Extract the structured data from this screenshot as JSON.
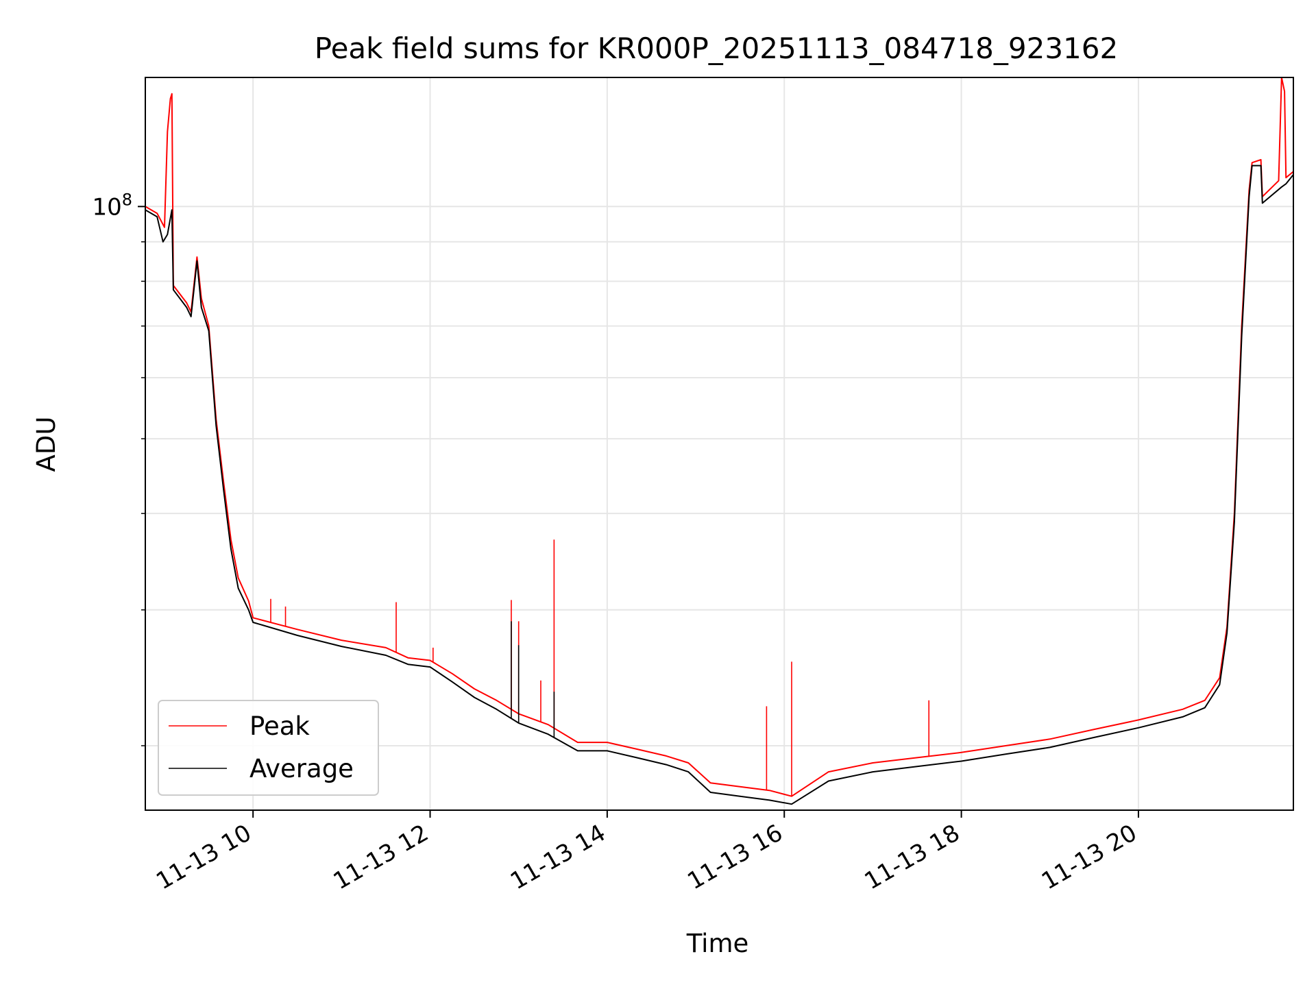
{
  "chart_data": {
    "type": "line",
    "title": "Peak field sums for KR000P_20251113_084718_923162",
    "xlabel": "Time",
    "ylabel": "ADU",
    "x_scale": "time",
    "y_scale": "log",
    "xlim": [
      "2025-11-13 08:47",
      "2025-11-13 21:45"
    ],
    "ylim": [
      16500000,
      147000000
    ],
    "x_ticks": [
      "2025-11-13 10:00",
      "2025-11-13 12:00",
      "2025-11-13 14:00",
      "2025-11-13 16:00",
      "2025-11-13 18:00",
      "2025-11-13 20:00"
    ],
    "x_tick_labels": [
      "11-13 10",
      "11-13 12",
      "11-13 14",
      "11-13 16",
      "11-13 18",
      "11-13 20"
    ],
    "y_major_ticks": [
      100000000
    ],
    "y_major_tick_labels": [
      "10",
      "8"
    ],
    "y_minor_ticks": [
      20000000,
      30000000,
      40000000,
      50000000,
      60000000,
      70000000,
      80000000,
      90000000
    ],
    "grid": true,
    "legend_position": "lower-left",
    "colors": {
      "peak": "#ff0000",
      "average": "#000000",
      "grid": "#e6e6e6"
    },
    "series": [
      {
        "name": "Peak",
        "color": "#ff0000",
        "points": [
          [
            "2025-11-13 08:47",
            100000000
          ],
          [
            "2025-11-13 08:55",
            98000000
          ],
          [
            "2025-11-13 09:00",
            94000000
          ],
          [
            "2025-11-13 09:02",
            125000000
          ],
          [
            "2025-11-13 09:04",
            138000000
          ],
          [
            "2025-11-13 09:05",
            140000000
          ],
          [
            "2025-11-13 09:06",
            79000000
          ],
          [
            "2025-11-13 09:15",
            75000000
          ],
          [
            "2025-11-13 09:18",
            73000000
          ],
          [
            "2025-11-13 09:22",
            86000000
          ],
          [
            "2025-11-13 09:25",
            76000000
          ],
          [
            "2025-11-13 09:30",
            70000000
          ],
          [
            "2025-11-13 09:35",
            53000000
          ],
          [
            "2025-11-13 09:40",
            44000000
          ],
          [
            "2025-11-13 09:45",
            37000000
          ],
          [
            "2025-11-13 09:50",
            33000000
          ],
          [
            "2025-11-13 09:57",
            30800000
          ],
          [
            "2025-11-13 10:00",
            29300000
          ],
          [
            "2025-11-13 10:30",
            28300000
          ],
          [
            "2025-11-13 11:00",
            27400000
          ],
          [
            "2025-11-13 11:30",
            26800000
          ],
          [
            "2025-11-13 11:45",
            26000000
          ],
          [
            "2025-11-13 12:00",
            25800000
          ],
          [
            "2025-11-13 12:15",
            24800000
          ],
          [
            "2025-11-13 12:30",
            23700000
          ],
          [
            "2025-11-13 12:45",
            22900000
          ],
          [
            "2025-11-13 13:00",
            22000000
          ],
          [
            "2025-11-13 13:20",
            21300000
          ],
          [
            "2025-11-13 13:40",
            20200000
          ],
          [
            "2025-11-13 14:00",
            20200000
          ],
          [
            "2025-11-13 14:20",
            19800000
          ],
          [
            "2025-11-13 14:40",
            19400000
          ],
          [
            "2025-11-13 14:55",
            19000000
          ],
          [
            "2025-11-13 15:10",
            17900000
          ],
          [
            "2025-11-13 15:30",
            17700000
          ],
          [
            "2025-11-13 15:50",
            17500000
          ],
          [
            "2025-11-13 16:05",
            17200000
          ],
          [
            "2025-11-13 16:30",
            18500000
          ],
          [
            "2025-11-13 17:00",
            19000000
          ],
          [
            "2025-11-13 17:30",
            19300000
          ],
          [
            "2025-11-13 18:00",
            19600000
          ],
          [
            "2025-11-13 18:30",
            20000000
          ],
          [
            "2025-11-13 19:00",
            20400000
          ],
          [
            "2025-11-13 19:30",
            21000000
          ],
          [
            "2025-11-13 20:00",
            21600000
          ],
          [
            "2025-11-13 20:30",
            22300000
          ],
          [
            "2025-11-13 20:45",
            22900000
          ],
          [
            "2025-11-13 20:55",
            24500000
          ],
          [
            "2025-11-13 21:00",
            28500000
          ],
          [
            "2025-11-13 21:05",
            40000000
          ],
          [
            "2025-11-13 21:10",
            70000000
          ],
          [
            "2025-11-13 21:15",
            105000000
          ],
          [
            "2025-11-13 21:17",
            114000000
          ],
          [
            "2025-11-13 21:23",
            115000000
          ],
          [
            "2025-11-13 21:24",
            103000000
          ],
          [
            "2025-11-13 21:35",
            108000000
          ],
          [
            "2025-11-13 21:37",
            147000000
          ],
          [
            "2025-11-13 21:39",
            141000000
          ],
          [
            "2025-11-13 21:40",
            109000000
          ],
          [
            "2025-11-13 21:45",
            111000000
          ]
        ],
        "spikes": [
          [
            "2025-11-13 10:12",
            31000000
          ],
          [
            "2025-11-13 10:22",
            30300000
          ],
          [
            "2025-11-13 11:37",
            30700000
          ],
          [
            "2025-11-13 12:02",
            26800000
          ],
          [
            "2025-11-13 12:55",
            30900000
          ],
          [
            "2025-11-13 13:00",
            29000000
          ],
          [
            "2025-11-13 13:15",
            24300000
          ],
          [
            "2025-11-13 13:24",
            37000000
          ],
          [
            "2025-11-13 15:48",
            22500000
          ],
          [
            "2025-11-13 16:05",
            25700000
          ],
          [
            "2025-11-13 17:38",
            22900000
          ]
        ]
      },
      {
        "name": "Average",
        "color": "#000000",
        "points": [
          [
            "2025-11-13 08:47",
            99000000
          ],
          [
            "2025-11-13 08:55",
            97000000
          ],
          [
            "2025-11-13 08:59",
            90000000
          ],
          [
            "2025-11-13 09:02",
            92000000
          ],
          [
            "2025-11-13 09:05",
            99000000
          ],
          [
            "2025-11-13 09:06",
            78000000
          ],
          [
            "2025-11-13 09:15",
            74000000
          ],
          [
            "2025-11-13 09:18",
            72000000
          ],
          [
            "2025-11-13 09:22",
            85000000
          ],
          [
            "2025-11-13 09:25",
            74000000
          ],
          [
            "2025-11-13 09:30",
            69000000
          ],
          [
            "2025-11-13 09:35",
            52000000
          ],
          [
            "2025-11-13 09:40",
            43000000
          ],
          [
            "2025-11-13 09:45",
            36000000
          ],
          [
            "2025-11-13 09:50",
            32000000
          ],
          [
            "2025-11-13 09:57",
            30000000
          ],
          [
            "2025-11-13 10:00",
            28900000
          ],
          [
            "2025-11-13 10:30",
            27800000
          ],
          [
            "2025-11-13 11:00",
            26900000
          ],
          [
            "2025-11-13 11:30",
            26200000
          ],
          [
            "2025-11-13 11:45",
            25500000
          ],
          [
            "2025-11-13 12:00",
            25300000
          ],
          [
            "2025-11-13 12:15",
            24200000
          ],
          [
            "2025-11-13 12:30",
            23100000
          ],
          [
            "2025-11-13 12:45",
            22300000
          ],
          [
            "2025-11-13 13:00",
            21400000
          ],
          [
            "2025-11-13 13:20",
            20700000
          ],
          [
            "2025-11-13 13:40",
            19700000
          ],
          [
            "2025-11-13 14:00",
            19700000
          ],
          [
            "2025-11-13 14:20",
            19300000
          ],
          [
            "2025-11-13 14:40",
            18900000
          ],
          [
            "2025-11-13 14:55",
            18500000
          ],
          [
            "2025-11-13 15:10",
            17400000
          ],
          [
            "2025-11-13 15:30",
            17200000
          ],
          [
            "2025-11-13 15:50",
            17000000
          ],
          [
            "2025-11-13 16:05",
            16800000
          ],
          [
            "2025-11-13 16:30",
            18000000
          ],
          [
            "2025-11-13 17:00",
            18500000
          ],
          [
            "2025-11-13 17:30",
            18800000
          ],
          [
            "2025-11-13 18:00",
            19100000
          ],
          [
            "2025-11-13 18:30",
            19500000
          ],
          [
            "2025-11-13 19:00",
            19900000
          ],
          [
            "2025-11-13 19:30",
            20500000
          ],
          [
            "2025-11-13 20:00",
            21100000
          ],
          [
            "2025-11-13 20:30",
            21800000
          ],
          [
            "2025-11-13 20:45",
            22400000
          ],
          [
            "2025-11-13 20:55",
            24000000
          ],
          [
            "2025-11-13 21:00",
            28000000
          ],
          [
            "2025-11-13 21:05",
            39000000
          ],
          [
            "2025-11-13 21:10",
            68000000
          ],
          [
            "2025-11-13 21:15",
            103000000
          ],
          [
            "2025-11-13 21:17",
            113000000
          ],
          [
            "2025-11-13 21:23",
            113000000
          ],
          [
            "2025-11-13 21:24",
            101000000
          ],
          [
            "2025-11-13 21:37",
            106000000
          ],
          [
            "2025-11-13 21:40",
            107000000
          ],
          [
            "2025-11-13 21:45",
            110000000
          ]
        ],
        "spikes": [
          [
            "2025-11-13 12:55",
            29000000
          ],
          [
            "2025-11-13 13:00",
            27000000
          ],
          [
            "2025-11-13 13:24",
            23500000
          ]
        ]
      }
    ]
  }
}
